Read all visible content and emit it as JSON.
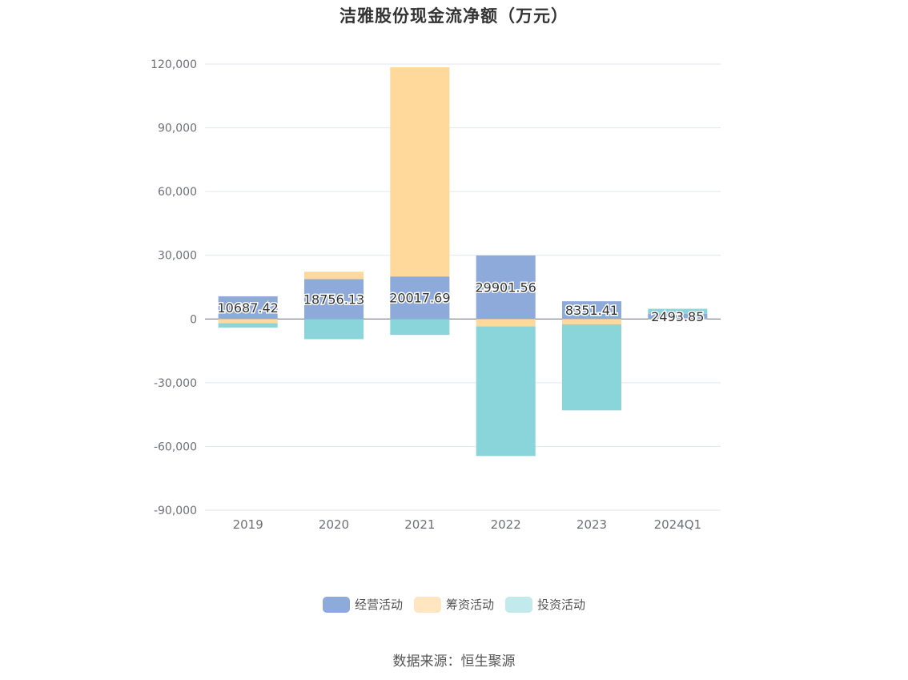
{
  "chart_data": {
    "type": "bar",
    "stacked": true,
    "title": "洁雅股份现金流净额（万元）",
    "categories": [
      "2019",
      "2020",
      "2021",
      "2022",
      "2023",
      "2024Q1"
    ],
    "series": [
      {
        "name": "经营活动",
        "color": "#8eaadb",
        "values": [
          10687.42,
          18756.13,
          20017.69,
          29901.56,
          8351.41,
          2493.85
        ]
      },
      {
        "name": "筹资活动",
        "color": "#ffd89c",
        "values": [
          -2000,
          3500,
          98500,
          -3500,
          -2500,
          -200
        ]
      },
      {
        "name": "投资活动",
        "color": "#89d5da",
        "values": [
          -2000,
          -9500,
          -7500,
          -61000,
          -40500,
          2300
        ]
      }
    ],
    "data_labels": [
      "10687.42",
      "18756.13",
      "20017.69",
      "29901.56",
      "8351.41",
      "2493.85"
    ],
    "ylim": [
      -90000,
      120000
    ],
    "yticks": [
      120000,
      90000,
      60000,
      30000,
      0,
      -30000,
      -60000,
      -90000
    ],
    "ytick_labels": [
      "120,000",
      "90,000",
      "60,000",
      "30,000",
      "0",
      "-30,000",
      "-60,000",
      "-90,000"
    ],
    "grid": true,
    "legend_position": "bottom",
    "source": "数据来源：恒生聚源"
  }
}
